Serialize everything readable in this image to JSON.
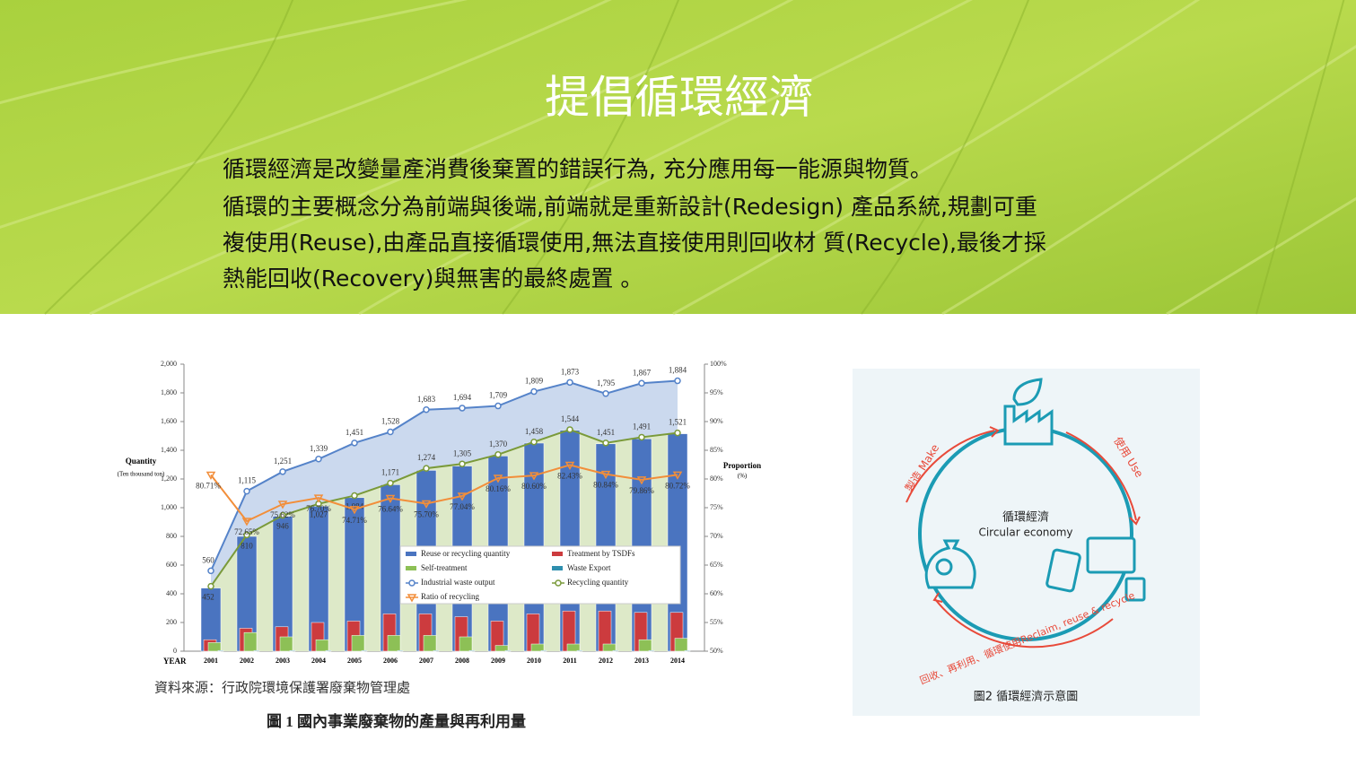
{
  "header": {
    "title": "提倡循環經濟",
    "paragraph": [
      "循環經濟是改變量產消費後棄置的錯誤行為, 充分應用每一能源與物質。",
      "循環的主要概念分為前端與後端,前端就是重新設計(Redesign) 產品系統,規劃可重",
      "複使用(Reuse),由產品直接循環使用,無法直接使用則回收材 質(Recycle),最後才採",
      "熱能回收(Recovery)與無害的最終處置 。"
    ]
  },
  "chart_data": {
    "type": "combo",
    "x_label": "YEAR",
    "y_label": "Quantity",
    "y_sublabel": "(Ten thousand ton)",
    "y2_label": "Proportion",
    "y2_sublabel": "(%)",
    "categories": [
      "2001",
      "2002",
      "2003",
      "2004",
      "2005",
      "2006",
      "2007",
      "2008",
      "2009",
      "2010",
      "2011",
      "2012",
      "2013",
      "2014"
    ],
    "ylim": [
      0,
      2000
    ],
    "yticks": [
      0,
      200,
      400,
      600,
      800,
      {
        "value": 1000,
        "label": "1,000"
      },
      {
        "value": 1200,
        "label": "1,200"
      },
      {
        "value": 1400,
        "label": "1,400"
      },
      {
        "value": 1600,
        "label": "1,600"
      },
      {
        "value": 1800,
        "label": "1,800"
      },
      {
        "value": 2000,
        "label": "2,000"
      }
    ],
    "y2lim": [
      50,
      100
    ],
    "y2ticks": [
      {
        "value": 50,
        "label": "50%"
      },
      {
        "value": 55,
        "label": "55%"
      },
      {
        "value": 60,
        "label": "60%"
      },
      {
        "value": 65,
        "label": "65%"
      },
      {
        "value": 70,
        "label": "70%"
      },
      {
        "value": 75,
        "label": "75%"
      },
      {
        "value": 80,
        "label": "80%"
      },
      {
        "value": 85,
        "label": "85%"
      },
      {
        "value": 90,
        "label": "90%"
      },
      {
        "value": 95,
        "label": "95%"
      },
      {
        "value": 100,
        "label": "100%"
      }
    ],
    "legend": "inside",
    "series": [
      {
        "name": "Reuse or recycling quantity",
        "type": "bar",
        "color": "#4a74c0",
        "values": [
          440,
          800,
          940,
          1010,
          1070,
          1160,
          1260,
          1290,
          1360,
          1450,
          1540,
          1445,
          1480,
          1515
        ]
      },
      {
        "name": "Treatment by TSDFs",
        "type": "bar",
        "color": "#cc3b3e",
        "values": [
          80,
          160,
          170,
          200,
          210,
          260,
          260,
          240,
          210,
          260,
          280,
          280,
          270,
          270
        ]
      },
      {
        "name": "Self-treatment",
        "type": "bar",
        "color": "#8dc056",
        "values": [
          60,
          130,
          100,
          80,
          110,
          110,
          110,
          100,
          40,
          50,
          50,
          50,
          80,
          90
        ]
      },
      {
        "name": "Waste Export",
        "type": "bar",
        "color": "#2f8fae",
        "values": [
          5,
          5,
          5,
          5,
          5,
          5,
          5,
          5,
          5,
          5,
          5,
          5,
          5,
          5
        ]
      },
      {
        "name": "Industrial waste output",
        "type": "line",
        "marker": "circle",
        "color": "#5583c9",
        "fill": "#cbd9ee",
        "values": [
          560,
          1115,
          1251,
          1339,
          1451,
          1528,
          1683,
          1694,
          1709,
          1809,
          1873,
          1795,
          1867,
          1884
        ],
        "value_labels": [
          "560",
          "1,115",
          "1,251",
          "1,339",
          "1,451",
          "1,528",
          "1,683",
          "1,694",
          "1,709",
          "1,809",
          "1,873",
          "1,795",
          "1,867",
          "1,884"
        ]
      },
      {
        "name": "Recycling quantity",
        "type": "line",
        "marker": "circle",
        "color": "#7a9a3a",
        "fill": "#dde9c8",
        "values": [
          452,
          810,
          946,
          1027,
          1084,
          1171,
          1274,
          1305,
          1370,
          1458,
          1544,
          1451,
          1491,
          1521
        ],
        "value_labels": [
          "452",
          "810",
          "946",
          "1,027",
          "1,084",
          "1,171",
          "1,274",
          "1,305",
          "1,370",
          "1,458",
          "1,544",
          "1,451",
          "1,491",
          "1,521"
        ]
      },
      {
        "name": "Ratio of recycling",
        "type": "line",
        "marker": "triangle",
        "axis": "y2",
        "color": "#f28e3a",
        "values": [
          80.71,
          72.65,
          75.62,
          76.7,
          74.71,
          76.64,
          75.7,
          77.04,
          80.16,
          80.6,
          82.43,
          80.84,
          79.86,
          80.72
        ],
        "value_labels": [
          "80.71%",
          "72.65%",
          "75.62%",
          "76.70%",
          "74.71%",
          "76.64%",
          "75.70%",
          "77.04%",
          "80.16%",
          "80.60%",
          "82.43%",
          "80.84%",
          "79.86%",
          "80.72%"
        ]
      }
    ]
  },
  "figure1": {
    "source": "資料來源：行政院環境保護署廢棄物管理處",
    "caption": "圖 1 國內事業廢棄物的產量與再利用量"
  },
  "diagram": {
    "center_zh": "循環經濟",
    "center_en": "Circular economy",
    "make": "製造 Make",
    "use": "使用 Use",
    "recycle": "回收、再利用、循環使用Reclaim, reuse & recycle",
    "caption": "圖2 循環經濟示意圖"
  }
}
